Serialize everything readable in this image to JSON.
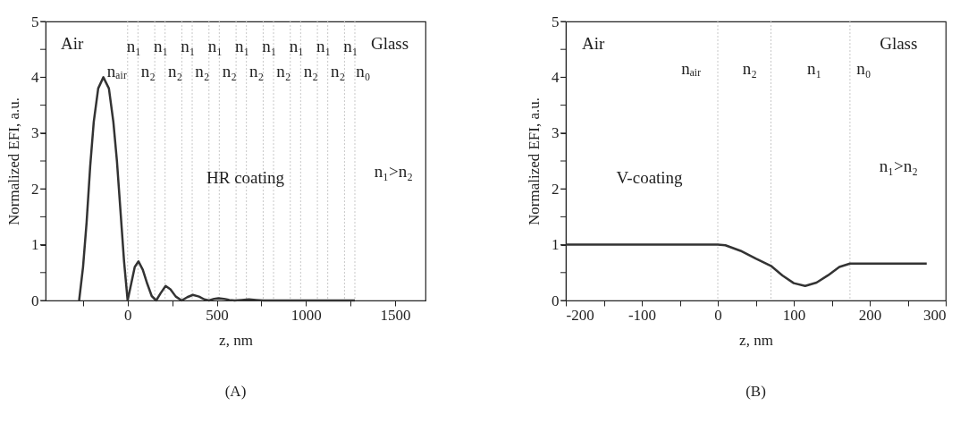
{
  "chart_data": [
    {
      "type": "line",
      "title": "(A)",
      "xlabel": "z, nm",
      "ylabel": "Normalized EFI, a.u.",
      "x": [
        -272,
        -250,
        -230,
        -210,
        -190,
        -165,
        -136,
        -105,
        -80,
        -60,
        -40,
        -20,
        0,
        20,
        40,
        61,
        85,
        110,
        135,
        160,
        185,
        213,
        240,
        270,
        303,
        335,
        366,
        400,
        430,
        456,
        485,
        509,
        540,
        570,
        600,
        640,
        680,
        720,
        760,
        1274
      ],
      "series": [
        {
          "color": "#333333",
          "values": [
            0,
            0.6,
            1.4,
            2.4,
            3.2,
            3.8,
            4.0,
            3.8,
            3.2,
            2.5,
            1.6,
            0.7,
            0,
            0.3,
            0.6,
            0.7,
            0.55,
            0.3,
            0.08,
            0,
            0.13,
            0.26,
            0.2,
            0.07,
            0,
            0.06,
            0.1,
            0.07,
            0.02,
            0,
            0.03,
            0.04,
            0.03,
            0.01,
            0,
            0.01,
            0.02,
            0.01,
            0,
            0
          ]
        }
      ],
      "xlim": [
        -460,
        1670
      ],
      "xticks": [
        {
          "value": -250,
          "label": null
        },
        0,
        {
          "value": 250,
          "label": null
        },
        500,
        {
          "value": 750,
          "label": null
        },
        1000,
        {
          "value": 1250,
          "label": null
        },
        1500
      ],
      "ylim": [
        0,
        5
      ],
      "yticks": [
        0,
        {
          "value": 0.5,
          "label": null
        },
        1,
        {
          "value": 1.5,
          "label": null
        },
        2,
        {
          "value": 2.5,
          "label": null
        },
        3,
        {
          "value": 3.5,
          "label": null
        },
        4,
        {
          "value": 4.5,
          "label": null
        },
        5
      ],
      "grid": false,
      "marker": "none",
      "line_style": "solid",
      "ref_lines": [
        {
          "axis": "x",
          "value": 0,
          "color": "#c8c8c8",
          "line_style": "dotted"
        },
        {
          "axis": "x",
          "value": 58,
          "color": "#c8c8c8",
          "line_style": "dotted"
        },
        {
          "axis": "x",
          "value": 152,
          "color": "#c8c8c8",
          "line_style": "dotted"
        },
        {
          "axis": "x",
          "value": 210,
          "color": "#c8c8c8",
          "line_style": "dotted"
        },
        {
          "axis": "x",
          "value": 304,
          "color": "#c8c8c8",
          "line_style": "dotted"
        },
        {
          "axis": "x",
          "value": 362,
          "color": "#c8c8c8",
          "line_style": "dotted"
        },
        {
          "axis": "x",
          "value": 456,
          "color": "#c8c8c8",
          "line_style": "dotted"
        },
        {
          "axis": "x",
          "value": 514,
          "color": "#c8c8c8",
          "line_style": "dotted"
        },
        {
          "axis": "x",
          "value": 608,
          "color": "#c8c8c8",
          "line_style": "dotted"
        },
        {
          "axis": "x",
          "value": 666,
          "color": "#c8c8c8",
          "line_style": "dotted"
        },
        {
          "axis": "x",
          "value": 760,
          "color": "#c8c8c8",
          "line_style": "dotted"
        },
        {
          "axis": "x",
          "value": 818,
          "color": "#c8c8c8",
          "line_style": "dotted"
        },
        {
          "axis": "x",
          "value": 912,
          "color": "#c8c8c8",
          "line_style": "dotted"
        },
        {
          "axis": "x",
          "value": 970,
          "color": "#c8c8c8",
          "line_style": "dotted"
        },
        {
          "axis": "x",
          "value": 1064,
          "color": "#c8c8c8",
          "line_style": "dotted"
        },
        {
          "axis": "x",
          "value": 1122,
          "color": "#c8c8c8",
          "line_style": "dotted"
        },
        {
          "axis": "x",
          "value": 1216,
          "color": "#c8c8c8",
          "line_style": "dotted"
        },
        {
          "axis": "x",
          "value": 1274,
          "color": "#c8c8c8",
          "line_style": "dotted"
        }
      ],
      "annotations": [
        "Air",
        "Glass",
        "HR coating",
        "n₁>n₂",
        "nₐᵢᵣ",
        "n₁",
        "n₁",
        "n₁",
        "n₁",
        "n₁",
        "n₁",
        "n₁",
        "n₁",
        "n₁",
        "n₂",
        "n₂",
        "n₂",
        "n₂",
        "n₂",
        "n₂",
        "n₂",
        "n₂",
        "n₀"
      ]
    },
    {
      "type": "line",
      "title": "(B)",
      "xlabel": "z, nm",
      "ylabel": "Normalized EFI, a.u.",
      "x": [
        -200,
        0,
        10,
        30,
        50,
        70,
        85,
        100,
        115,
        130,
        145,
        160,
        174,
        275
      ],
      "series": [
        {
          "color": "#333333",
          "values": [
            1,
            1,
            0.99,
            0.89,
            0.75,
            0.62,
            0.45,
            0.31,
            0.26,
            0.32,
            0.45,
            0.6,
            0.66,
            0.66
          ]
        }
      ],
      "xlim": [
        -200,
        300
      ],
      "xticks": [
        -200,
        {
          "value": -150,
          "label": null
        },
        -100,
        {
          "value": -50,
          "label": null
        },
        0,
        {
          "value": 50,
          "label": null
        },
        100,
        {
          "value": 150,
          "label": null
        },
        200,
        {
          "value": 250,
          "label": null
        },
        300
      ],
      "ylim": [
        0,
        5
      ],
      "yticks": [
        0,
        {
          "value": 0.5,
          "label": null
        },
        1,
        {
          "value": 1.5,
          "label": null
        },
        2,
        {
          "value": 2.5,
          "label": null
        },
        3,
        {
          "value": 3.5,
          "label": null
        },
        4,
        {
          "value": 4.5,
          "label": null
        },
        5
      ],
      "grid": false,
      "marker": "none",
      "line_style": "solid",
      "ref_lines": [
        {
          "axis": "x",
          "value": 0,
          "color": "#c8c8c8",
          "line_style": "dotted"
        },
        {
          "axis": "x",
          "value": 70,
          "color": "#c8c8c8",
          "line_style": "dotted"
        },
        {
          "axis": "x",
          "value": 174,
          "color": "#c8c8c8",
          "line_style": "dotted"
        }
      ],
      "annotations": [
        "Air",
        "Glass",
        "V-coating",
        "n₁>n₂",
        "nₐᵢᵣ",
        "n₂",
        "n₁",
        "n₀"
      ]
    }
  ]
}
